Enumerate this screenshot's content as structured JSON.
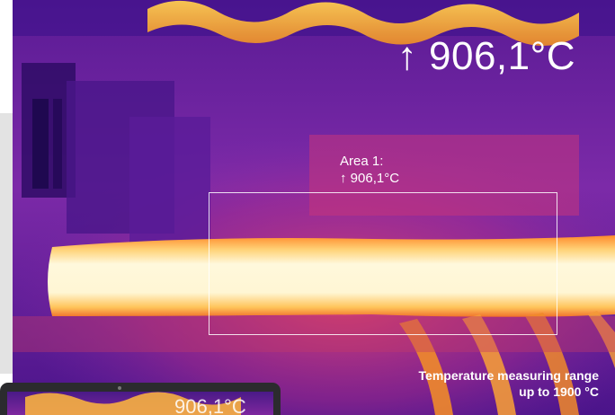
{
  "thermal_view": {
    "max_readout": "↑ 906,1°C",
    "area": {
      "label": "Area 1:",
      "value": "↑ 906,1°C"
    }
  },
  "caption": {
    "line1": "Temperature measuring range",
    "line2": "up to 1900 °C"
  },
  "laptop": {
    "screen_readout": "906,1°C"
  },
  "colors": {
    "cold": "#2b0d66",
    "cool": "#7a1fa6",
    "warm": "#d0347a",
    "hot": "#f07a2a",
    "hottest": "#fff6d0"
  }
}
